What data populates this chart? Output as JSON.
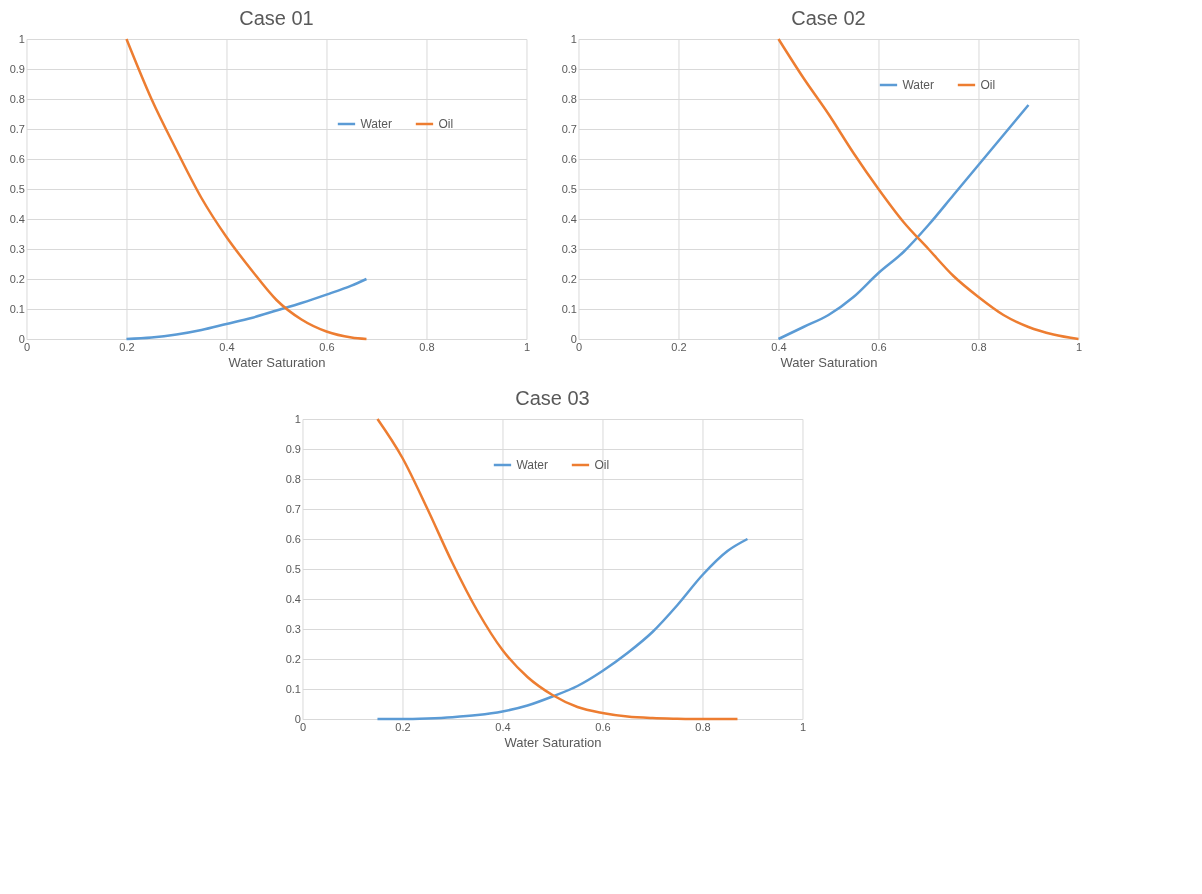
{
  "chart_data": [
    {
      "type": "line",
      "title": "Case 01",
      "xlabel": "Water Saturation",
      "xlim": [
        0,
        1
      ],
      "xticks": [
        0,
        0.2,
        0.4,
        0.6,
        0.8,
        1
      ],
      "ylim": [
        0,
        1
      ],
      "yticks": [
        0,
        0.1,
        0.2,
        0.3,
        0.4,
        0.5,
        0.6,
        0.7,
        0.8,
        0.9,
        1
      ],
      "grid": true,
      "legend": "right",
      "series": [
        {
          "name": "Water",
          "color": "#5b9bd5",
          "x": [
            0.2,
            0.25,
            0.3,
            0.35,
            0.4,
            0.45,
            0.5,
            0.55,
            0.6,
            0.65,
            0.68
          ],
          "values": [
            0,
            0.005,
            0.015,
            0.03,
            0.05,
            0.07,
            0.095,
            0.12,
            0.148,
            0.178,
            0.2
          ]
        },
        {
          "name": "Oil",
          "color": "#ed7d31",
          "x": [
            0.2,
            0.25,
            0.3,
            0.35,
            0.4,
            0.45,
            0.5,
            0.55,
            0.6,
            0.65,
            0.68
          ],
          "values": [
            1,
            0.8,
            0.63,
            0.47,
            0.34,
            0.23,
            0.13,
            0.065,
            0.025,
            0.005,
            0
          ]
        }
      ]
    },
    {
      "type": "line",
      "title": "Case 02",
      "xlabel": "Water Saturation",
      "xlim": [
        0,
        1
      ],
      "xticks": [
        0,
        0.2,
        0.4,
        0.6,
        0.8,
        1
      ],
      "ylim": [
        0,
        1
      ],
      "yticks": [
        0,
        0.1,
        0.2,
        0.3,
        0.4,
        0.5,
        0.6,
        0.7,
        0.8,
        0.9,
        1
      ],
      "grid": true,
      "legend": "top right",
      "series": [
        {
          "name": "Water",
          "color": "#5b9bd5",
          "x": [
            0.4,
            0.45,
            0.5,
            0.55,
            0.6,
            0.65,
            0.7,
            0.75,
            0.8,
            0.85,
            0.9
          ],
          "values": [
            0,
            0.04,
            0.08,
            0.14,
            0.22,
            0.29,
            0.38,
            0.48,
            0.58,
            0.68,
            0.78
          ]
        },
        {
          "name": "Oil",
          "color": "#ed7d31",
          "x": [
            0.4,
            0.45,
            0.5,
            0.55,
            0.6,
            0.65,
            0.7,
            0.75,
            0.8,
            0.85,
            0.9,
            0.95,
            1
          ],
          "values": [
            1,
            0.87,
            0.75,
            0.62,
            0.5,
            0.39,
            0.3,
            0.21,
            0.14,
            0.08,
            0.04,
            0.015,
            0
          ]
        }
      ]
    },
    {
      "type": "line",
      "title": "Case 03",
      "xlabel": "Water Saturation",
      "xlim": [
        0,
        1
      ],
      "xticks": [
        0,
        0.2,
        0.4,
        0.6,
        0.8,
        1
      ],
      "ylim": [
        0,
        1
      ],
      "yticks": [
        0,
        0.1,
        0.2,
        0.3,
        0.4,
        0.5,
        0.6,
        0.7,
        0.8,
        0.9,
        1
      ],
      "grid": true,
      "legend": "top",
      "series": [
        {
          "name": "Water",
          "color": "#5b9bd5",
          "x": [
            0.15,
            0.2,
            0.25,
            0.3,
            0.35,
            0.4,
            0.45,
            0.5,
            0.55,
            0.6,
            0.65,
            0.7,
            0.75,
            0.8,
            0.85,
            0.89
          ],
          "values": [
            0,
            0,
            0.002,
            0.006,
            0.013,
            0.025,
            0.045,
            0.075,
            0.11,
            0.16,
            0.22,
            0.29,
            0.38,
            0.48,
            0.56,
            0.6
          ]
        },
        {
          "name": "Oil",
          "color": "#ed7d31",
          "x": [
            0.15,
            0.2,
            0.25,
            0.3,
            0.35,
            0.4,
            0.45,
            0.5,
            0.55,
            0.6,
            0.65,
            0.7,
            0.75,
            0.8,
            0.87
          ],
          "values": [
            1,
            0.87,
            0.7,
            0.52,
            0.36,
            0.23,
            0.14,
            0.08,
            0.04,
            0.02,
            0.008,
            0.003,
            0.001,
            0,
            0
          ]
        }
      ]
    }
  ]
}
